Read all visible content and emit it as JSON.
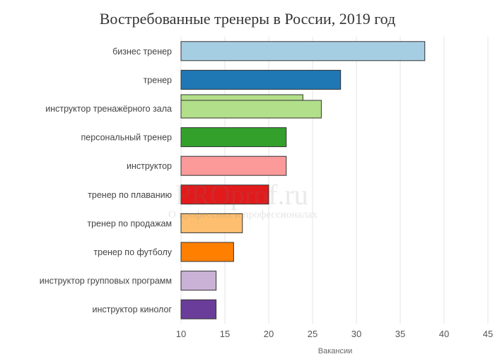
{
  "chart_data": {
    "type": "bar",
    "orientation": "horizontal",
    "title": "Востребованные тренеры в России, 2019 год",
    "xlabel": "Вакансии",
    "ylabel": "",
    "xlim": [
      10,
      45
    ],
    "x_ticks": [
      "10",
      "15",
      "20",
      "25",
      "30",
      "35",
      "40",
      "45"
    ],
    "grid": true,
    "categories": [
      "бизнес тренер",
      "тренер",
      "инструктор тренажёрного зала",
      "персональный тренер",
      "инструктор",
      "тренер по плаванию",
      "тренер по продажам",
      "тренер по футболу",
      "инструктор групповых программ",
      "инструктор кинолог"
    ],
    "values": [
      37.8,
      28.2,
      26,
      22,
      22,
      20,
      17,
      16,
      14,
      14
    ],
    "secondary_bar": {
      "category": "инструктор тренажёрного зала",
      "value": 23.9
    },
    "colors": [
      "#a6cee3",
      "#1f78b4",
      "#b2df8a",
      "#33a02c",
      "#fb9a99",
      "#e31a1c",
      "#fdbf6f",
      "#ff7f00",
      "#cab2d6",
      "#6a3d9a"
    ]
  },
  "watermark": {
    "main": "PROprof.ru",
    "sub": "О профессиях и профессионалах"
  }
}
